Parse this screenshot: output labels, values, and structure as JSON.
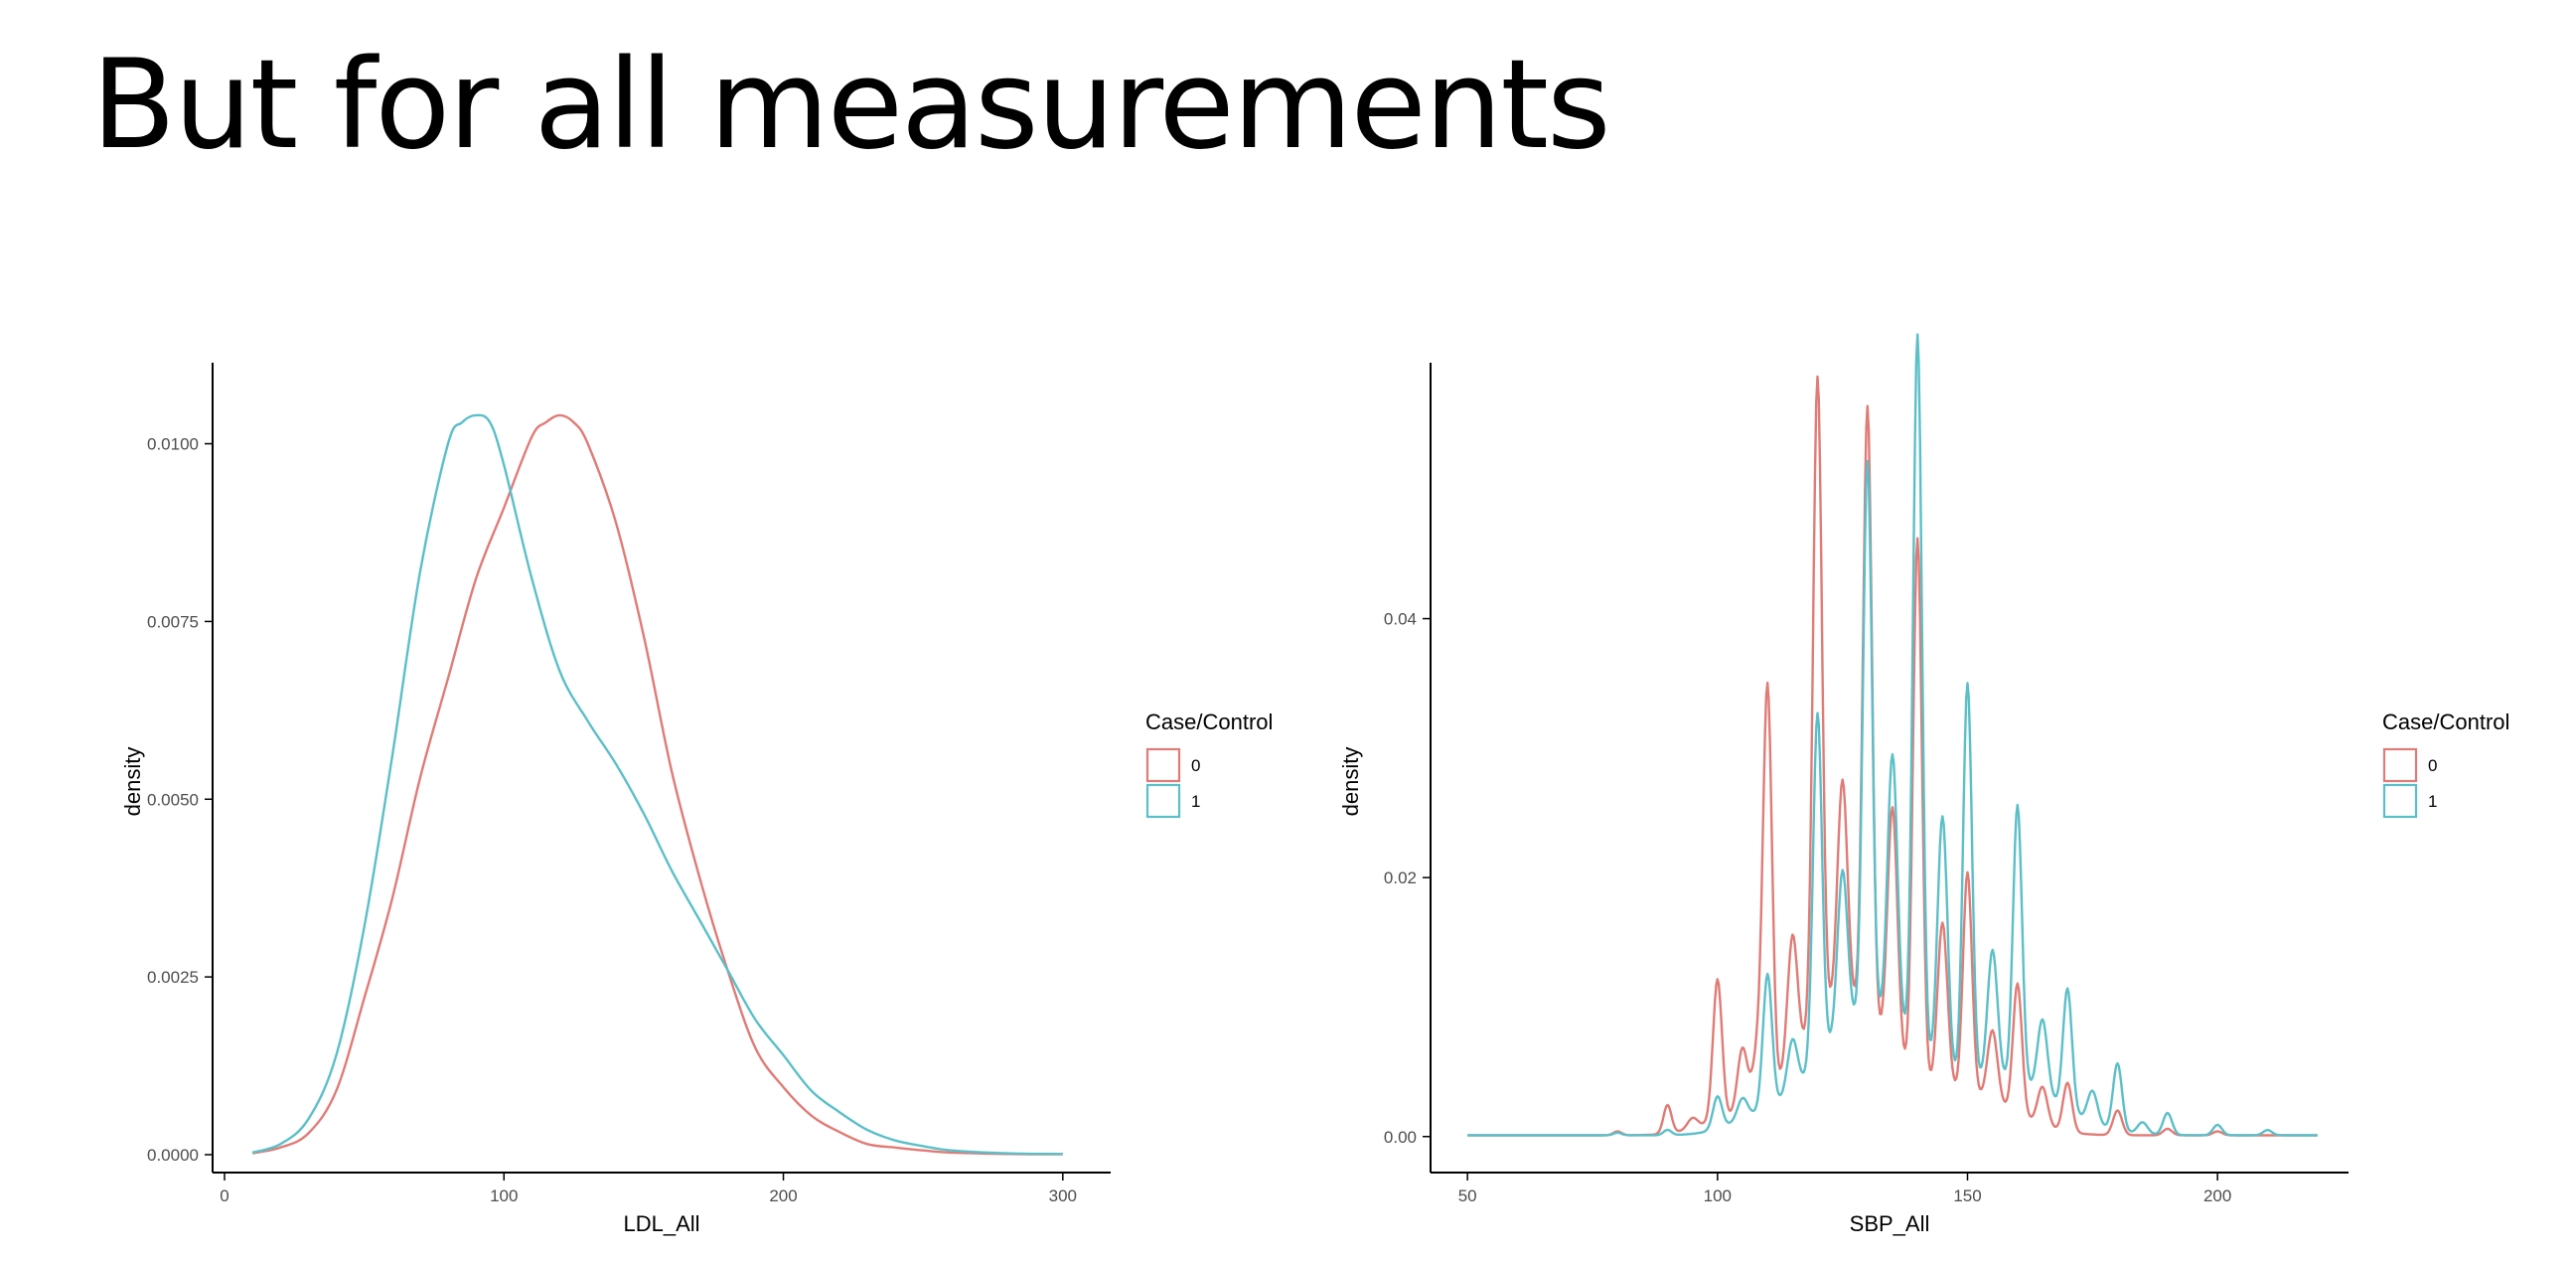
{
  "slide": {
    "title": "But for all measurements"
  },
  "colors": {
    "series0": "#E07B76",
    "series1": "#5BBFC8",
    "axis": "#000000",
    "tick_text": "#4d4d4d"
  },
  "chart_data": [
    {
      "type": "line",
      "chart_kind": "density",
      "xlabel": "LDL_All",
      "ylabel": "density",
      "xlim": [
        0,
        315
      ],
      "ylim": [
        0,
        0.011
      ],
      "x_ticks": [
        0,
        100,
        200,
        300
      ],
      "y_ticks": [
        0,
        0.0025,
        0.005,
        0.0075,
        0.01
      ],
      "y_tick_labels": [
        "0.0000",
        "0.0025",
        "0.0050",
        "0.0075",
        "0.0100"
      ],
      "grid": false,
      "legend": {
        "title": "Case/Control",
        "position": "right",
        "labels": [
          "0",
          "1"
        ]
      },
      "series": [
        {
          "name": "0",
          "x": [
            10,
            20,
            30,
            40,
            50,
            60,
            70,
            80,
            90,
            100,
            110,
            115,
            120,
            125,
            130,
            140,
            150,
            160,
            170,
            180,
            190,
            200,
            210,
            220,
            230,
            240,
            250,
            260,
            280,
            300
          ],
          "y": [
            2e-05,
            0.0001,
            0.0003,
            0.0009,
            0.0022,
            0.0036,
            0.0053,
            0.0067,
            0.0081,
            0.0091,
            0.0101,
            0.0103,
            0.0104,
            0.0103,
            0.01,
            0.0089,
            0.0073,
            0.0054,
            0.0039,
            0.0026,
            0.0015,
            0.00095,
            0.00055,
            0.00032,
            0.00015,
            0.0001,
            6e-05,
            3e-05,
            1e-05,
            5e-06
          ]
        },
        {
          "name": "1",
          "x": [
            10,
            20,
            30,
            40,
            50,
            60,
            70,
            80,
            85,
            90,
            95,
            100,
            110,
            120,
            130,
            140,
            150,
            160,
            170,
            180,
            190,
            200,
            210,
            220,
            230,
            240,
            250,
            260,
            280,
            300
          ],
          "y": [
            3e-05,
            0.00015,
            0.0005,
            0.0014,
            0.0032,
            0.0056,
            0.0082,
            0.01,
            0.0103,
            0.0104,
            0.0103,
            0.0097,
            0.0081,
            0.0068,
            0.0061,
            0.0055,
            0.0048,
            0.004,
            0.0033,
            0.0026,
            0.0019,
            0.0014,
            0.0009,
            0.0006,
            0.00035,
            0.0002,
            0.00012,
            6e-05,
            2e-05,
            1e-05
          ]
        }
      ]
    },
    {
      "type": "line",
      "chart_kind": "density",
      "xlabel": "SBP_All",
      "ylabel": "density",
      "xlim": [
        45,
        225
      ],
      "ylim": [
        -0.0014,
        0.059
      ],
      "x_ticks": [
        50,
        100,
        150,
        200
      ],
      "y_ticks": [
        0,
        0.02,
        0.04
      ],
      "y_tick_labels": [
        "0.00",
        "0.02",
        "0.04"
      ],
      "grid": false,
      "legend": {
        "title": "Case/Control",
        "position": "right",
        "labels": [
          "0",
          "1"
        ]
      },
      "series": [
        {
          "name": "0",
          "baseline": 0.0001,
          "peaks": [
            [
              80,
              0.0003,
              0.8
            ],
            [
              90,
              0.0022,
              0.8
            ],
            [
              95,
              0.0008,
              1
            ],
            [
              100,
              0.0109,
              0.9
            ],
            [
              105,
              0.005,
              1
            ],
            [
              108,
              0.004,
              1
            ],
            [
              110,
              0.0315,
              0.9
            ],
            [
              115,
              0.01,
              1
            ],
            [
              120,
              0.05,
              0.9
            ],
            [
              125,
              0.0174,
              1
            ],
            [
              130,
              0.0475,
              0.9
            ],
            [
              135,
              0.0192,
              1
            ],
            [
              140,
              0.042,
              0.9
            ],
            [
              145,
              0.013,
              1
            ],
            [
              150,
              0.0171,
              0.9
            ],
            [
              155,
              0.0055,
              1
            ],
            [
              160,
              0.0101,
              0.9
            ],
            [
              165,
              0.003,
              1
            ],
            [
              170,
              0.0038,
              0.9
            ],
            [
              180,
              0.0019,
              0.9
            ],
            [
              190,
              0.0005,
              0.9
            ],
            [
              200,
              0.0003,
              0.9
            ]
          ],
          "spread": [
            [
              102,
              0.001,
              6
            ],
            [
              125,
              0.01,
              9
            ],
            [
              150,
              0.003,
              9
            ]
          ]
        },
        {
          "name": "1",
          "baseline": 0.0001,
          "peaks": [
            [
              80,
              0.0002,
              0.8
            ],
            [
              90,
              0.0004,
              0.8
            ],
            [
              100,
              0.0025,
              0.9
            ],
            [
              105,
              0.0016,
              1
            ],
            [
              110,
              0.0103,
              0.9
            ],
            [
              115,
              0.004,
              1
            ],
            [
              120,
              0.027,
              0.9
            ],
            [
              125,
              0.0125,
              1
            ],
            [
              130,
              0.043,
              0.9
            ],
            [
              135,
              0.0212,
              1
            ],
            [
              140,
              0.0556,
              0.9
            ],
            [
              145,
              0.02,
              1
            ],
            [
              150,
              0.0308,
              0.9
            ],
            [
              155,
              0.0101,
              1
            ],
            [
              160,
              0.0215,
              0.9
            ],
            [
              165,
              0.0058,
              1
            ],
            [
              170,
              0.0094,
              0.9
            ],
            [
              175,
              0.0025,
              1
            ],
            [
              180,
              0.0052,
              0.9
            ],
            [
              185,
              0.0009,
              1
            ],
            [
              190,
              0.0017,
              0.9
            ],
            [
              200,
              0.0008,
              0.9
            ],
            [
              210,
              0.0004,
              0.9
            ]
          ],
          "spread": [
            [
              108,
              0.001,
              6
            ],
            [
              130,
              0.009,
              10
            ],
            [
              158,
              0.004,
              10
            ]
          ]
        }
      ]
    }
  ]
}
